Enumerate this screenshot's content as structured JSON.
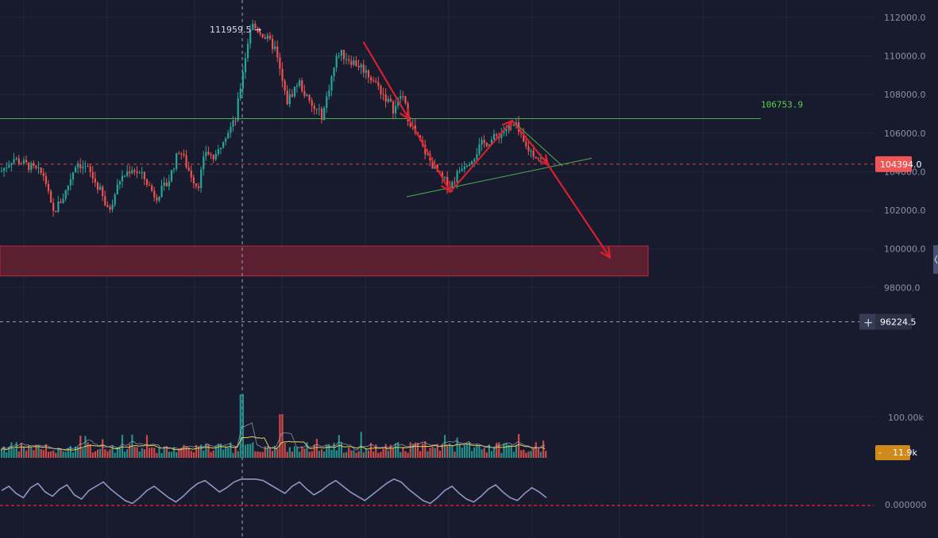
{
  "colors": {
    "background": "#171b2d",
    "grid": "#22273b",
    "up": "#26a69a",
    "down": "#ef5350",
    "resistance_line": "#4caf50",
    "support_zone": "#5a1f30",
    "support_zone_border": "#c0283d",
    "arrow": "#d8202e",
    "price_badge": "#f05656",
    "crosshair_badge": "#2b3045",
    "volume_badge": "#d08a1a",
    "oscillator": "#8f96c4",
    "zero_line": "#d8202e",
    "volume_ma": "#e8d15a",
    "volume_ma2": "#a8acc8"
  },
  "chart_data": {
    "type": "candlestick",
    "price_axis": {
      "ticks": [
        "112000.0",
        "110000.0",
        "108000.0",
        "106000.0",
        "104000.0",
        "102000.0",
        "100000.0",
        "98000.0"
      ],
      "range": [
        95300,
        112900
      ]
    },
    "high_label": "111959.5 →",
    "resistance": {
      "value": 106753.9,
      "label": "106753.9"
    },
    "support_zone": [
      98600,
      100150
    ],
    "last_price": {
      "value": 104394.0,
      "label": "104394.0"
    },
    "crosshair": {
      "value": 96224.5,
      "label": "96224.5"
    },
    "triangle": {
      "upper": [
        [
          644,
          106680
        ],
        [
          708,
          104300
        ]
      ],
      "lower": [
        [
          512,
          102700
        ],
        [
          745,
          104700
        ]
      ]
    },
    "arrow_path": [
      [
        458,
        110700
      ],
      [
        515,
        106720
      ],
      [
        567,
        102950
      ],
      [
        645,
        106650
      ],
      [
        690,
        104350
      ],
      [
        768,
        99550
      ]
    ],
    "waypoints": [
      [
        0,
        104000
      ],
      [
        15,
        104700
      ],
      [
        35,
        104300
      ],
      [
        55,
        103800
      ],
      [
        65,
        101800
      ],
      [
        80,
        102800
      ],
      [
        95,
        104500
      ],
      [
        110,
        104100
      ],
      [
        125,
        103000
      ],
      [
        135,
        101900
      ],
      [
        150,
        103600
      ],
      [
        165,
        104200
      ],
      [
        180,
        103700
      ],
      [
        195,
        102700
      ],
      [
        210,
        103400
      ],
      [
        225,
        105200
      ],
      [
        235,
        104200
      ],
      [
        248,
        103200
      ],
      [
        258,
        105100
      ],
      [
        270,
        104600
      ],
      [
        280,
        105800
      ],
      [
        295,
        106600
      ],
      [
        305,
        109300
      ],
      [
        315,
        111650
      ],
      [
        328,
        111200
      ],
      [
        345,
        110400
      ],
      [
        360,
        107600
      ],
      [
        375,
        108700
      ],
      [
        390,
        107400
      ],
      [
        405,
        106900
      ],
      [
        415,
        108700
      ],
      [
        425,
        110200
      ],
      [
        440,
        109800
      ],
      [
        455,
        109400
      ],
      [
        470,
        108700
      ],
      [
        485,
        107800
      ],
      [
        495,
        107200
      ],
      [
        505,
        108100
      ],
      [
        512,
        106900
      ],
      [
        525,
        105700
      ],
      [
        540,
        104600
      ],
      [
        555,
        103600
      ],
      [
        567,
        103300
      ],
      [
        580,
        104300
      ],
      [
        595,
        104800
      ],
      [
        605,
        105400
      ],
      [
        620,
        105700
      ],
      [
        635,
        106200
      ],
      [
        648,
        106400
      ],
      [
        660,
        105300
      ],
      [
        675,
        104800
      ],
      [
        688,
        104394
      ]
    ],
    "volume_axis": {
      "tick": "100.00k"
    },
    "volume_current": {
      "label": "11.9k"
    },
    "oscillator_axis": {
      "tick": "0.000000"
    },
    "oscillator_values": [
      0.55,
      0.7,
      0.45,
      0.3,
      0.65,
      0.8,
      0.5,
      0.35,
      0.6,
      0.75,
      0.4,
      0.25,
      0.55,
      0.7,
      0.85,
      0.6,
      0.4,
      0.2,
      0.1,
      0.3,
      0.55,
      0.7,
      0.5,
      0.3,
      0.15,
      0.35,
      0.6,
      0.8,
      0.9,
      0.7,
      0.5,
      0.65,
      0.85,
      0.95,
      0.95,
      0.95,
      0.9,
      0.75,
      0.6,
      0.45,
      0.7,
      0.85,
      0.6,
      0.4,
      0.55,
      0.75,
      0.9,
      0.7,
      0.5,
      0.35,
      0.2,
      0.4,
      0.6,
      0.8,
      0.95,
      0.85,
      0.6,
      0.4,
      0.2,
      0.1,
      0.3,
      0.55,
      0.7,
      0.45,
      0.25,
      0.15,
      0.35,
      0.6,
      0.75,
      0.5,
      0.3,
      0.2,
      0.45,
      0.65,
      0.5,
      0.3
    ]
  }
}
